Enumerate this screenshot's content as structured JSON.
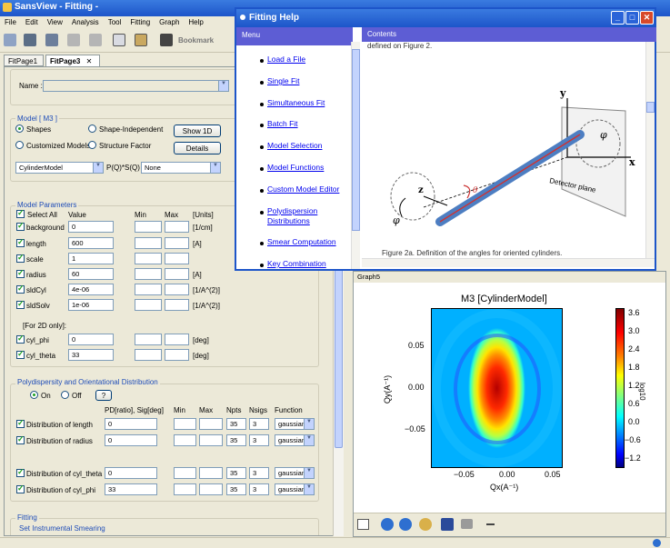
{
  "app": {
    "title": "SansView - Fitting -"
  },
  "menu": [
    "File",
    "Edit",
    "View",
    "Analysis",
    "Tool",
    "Fitting",
    "Graph",
    "Help"
  ],
  "toolbar": {
    "bookmark_label": "Bookmark"
  },
  "tabs": [
    "FitPage1",
    "FitPage3"
  ],
  "name_label": "Name :",
  "model_section": {
    "title": "Model [ M3 ]",
    "radio_shapes": "Shapes",
    "radio_shape_independent": "Shape-Independent",
    "radio_customized": "Customized Models",
    "radio_structure": "Structure Factor",
    "show_1d": "Show 1D",
    "details": "Details",
    "model_select": "CylinderModel",
    "pq_label": "P(Q)*S(Q)",
    "sq_select": "None"
  },
  "params": {
    "title": "Model Parameters",
    "hdr_select_all": "Select All",
    "hdr_value": "Value",
    "hdr_min": "Min",
    "hdr_max": "Max",
    "hdr_units": "[Units]",
    "rows": [
      {
        "name": "background",
        "value": "0",
        "unit": "[1/cm]"
      },
      {
        "name": "length",
        "value": "600",
        "unit": "[A]"
      },
      {
        "name": "scale",
        "value": "1",
        "unit": ""
      },
      {
        "name": "radius",
        "value": "60",
        "unit": "[A]"
      },
      {
        "name": "sldCyl",
        "value": "4e-06",
        "unit": "[1/A^(2)]"
      },
      {
        "name": "sldSolv",
        "value": "1e-06",
        "unit": "[1/A^(2)]"
      }
    ],
    "for2d": "[For 2D only]:",
    "rows2d": [
      {
        "name": "cyl_phi",
        "value": "0",
        "unit": "[deg]"
      },
      {
        "name": "cyl_theta",
        "value": "33",
        "unit": "[deg]"
      }
    ]
  },
  "poly": {
    "title": "Polydispersity and Orientational Distribution",
    "on": "On",
    "off": "Off",
    "help": "?",
    "hdr_pd": "PD[ratio], Sig[deg]",
    "hdr_min": "Min",
    "hdr_max": "Max",
    "hdr_npts": "Npts",
    "hdr_nsigs": "Nsigs",
    "hdr_function": "Function",
    "rows": [
      {
        "name": "Distribution of length",
        "pd": "0",
        "npts": "35",
        "nsigs": "3",
        "func": "gaussian"
      },
      {
        "name": "Distribution of radius",
        "pd": "0",
        "npts": "35",
        "nsigs": "3",
        "func": "gaussian"
      },
      {
        "name": "Distribution of cyl_theta",
        "pd": "0",
        "npts": "35",
        "nsigs": "3",
        "func": "gaussian"
      },
      {
        "name": "Distribution of cyl_phi",
        "pd": "33",
        "npts": "35",
        "nsigs": "3",
        "func": "gaussian"
      }
    ]
  },
  "fitting": {
    "title": "Fitting",
    "smearing": "Set Instrumental Smearing"
  },
  "help_window": {
    "title": "Fitting Help",
    "menu_header": "Menu",
    "contents_header": "Contents",
    "menu_items": [
      "Load a File",
      "Single Fit",
      "Simultaneous Fit",
      "Batch Fit",
      "Model Selection",
      "Model Functions",
      "Custom Model Editor",
      "Polydispersion",
      "Distributions",
      "Smear Computation",
      "Key Combination"
    ],
    "content_top": "defined on Figure 2.",
    "figure_caption": "Figure 2a. Definition of the angles for oriented cylinders.",
    "axis_y": "y",
    "axis_x": "x",
    "axis_z": "z",
    "phi": "φ",
    "theta": "θ",
    "detector_plane": "Detector plane"
  },
  "graph": {
    "window_title": "Graph5",
    "plot_title": "M3 [CylinderModel]",
    "xlabel": "Qx(A⁻¹)",
    "ylabel": "Qy(A⁻¹)",
    "xticks": [
      "−0.05",
      "0.00",
      "0.05"
    ],
    "yticks": [
      "0.05",
      "0.00",
      "−0.05"
    ],
    "cbar_ticks": [
      "3.6",
      "3.0",
      "2.4",
      "1.8",
      "1.2",
      "0.6",
      "0.0",
      "−0.6",
      "−1.2"
    ],
    "cbar_label": "log10"
  }
}
